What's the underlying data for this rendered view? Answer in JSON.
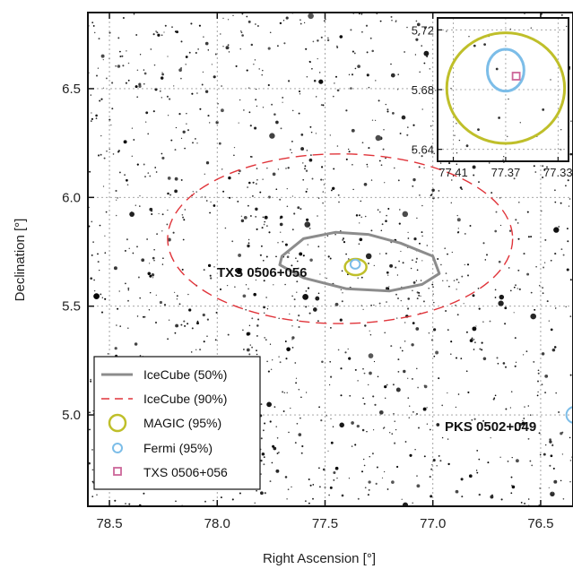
{
  "chart_data": {
    "type": "scatter",
    "xlabel": "Right Ascension [°]",
    "ylabel": "Declination [°]",
    "xlim": [
      78.6,
      76.35
    ],
    "ylim": [
      4.58,
      6.85
    ],
    "x_ticks": [
      "78.5",
      "78.0",
      "77.5",
      "77.0",
      "76.5"
    ],
    "x_tick_values": [
      78.5,
      78.0,
      77.5,
      77.0,
      76.5
    ],
    "y_ticks": [
      "5.0",
      "5.5",
      "6.0",
      "6.5"
    ],
    "y_tick_values": [
      5.0,
      5.5,
      6.0,
      6.5
    ],
    "contours": {
      "icecube_50": [
        [
          77.7,
          5.73
        ],
        [
          77.6,
          5.81
        ],
        [
          77.45,
          5.84
        ],
        [
          77.3,
          5.83
        ],
        [
          77.15,
          5.79
        ],
        [
          77.0,
          5.73
        ],
        [
          76.97,
          5.65
        ],
        [
          77.05,
          5.6
        ],
        [
          77.2,
          5.57
        ],
        [
          77.4,
          5.58
        ],
        [
          77.6,
          5.63
        ],
        [
          77.71,
          5.69
        ]
      ],
      "icecube_90": {
        "center": [
          77.43,
          5.81
        ],
        "radius_x": 0.8,
        "radius_y": 0.39
      },
      "magic_95": {
        "center": [
          77.358,
          5.68
        ],
        "radius_x": 0.05,
        "radius_y": 0.037
      },
      "fermi_95": {
        "center": [
          77.36,
          5.693
        ],
        "radius_x": 0.022,
        "radius_y": 0.021
      }
    },
    "sources": [
      {
        "name": "TXS 0506+056",
        "ra": 77.3582,
        "dec": 5.6931
      },
      {
        "name": "PKS 0502+049",
        "ra": 76.36,
        "dec": 5.0
      }
    ],
    "legend": {
      "position": "lower-left",
      "entries": [
        {
          "label": "IceCube (50%)",
          "color": "#8c8c8c",
          "style": "solid-line"
        },
        {
          "label": "IceCube (90%)",
          "color": "#e0343a",
          "style": "dashed-line"
        },
        {
          "label": "MAGIC (95%)",
          "color": "#bfbf2a",
          "style": "circle"
        },
        {
          "label": "Fermi (95%)",
          "color": "#7cbde8",
          "style": "circle"
        },
        {
          "label": "TXS 0506+056",
          "color": "#cc6699",
          "style": "square"
        }
      ]
    },
    "inset": {
      "xlim": [
        77.422,
        77.322
      ],
      "ylim": [
        5.632,
        5.728
      ],
      "x_ticks": [
        "77.41",
        "77.37",
        "77.33"
      ],
      "x_tick_values": [
        77.41,
        77.37,
        77.33
      ],
      "y_ticks": [
        "5.64",
        "5.68",
        "5.72"
      ],
      "y_tick_values": [
        5.64,
        5.68,
        5.72
      ],
      "magic_95": {
        "center": [
          77.37,
          5.681
        ],
        "radius_x": 0.045,
        "radius_y": 0.037
      },
      "fermi_95": {
        "center": [
          77.37,
          5.693
        ],
        "radius_x": 0.014,
        "radius_y": 0.014
      },
      "source": {
        "ra": 77.362,
        "dec": 5.689
      }
    },
    "grid": true,
    "colors": {
      "icecube_50": "#8c8c8c",
      "icecube_90": "#e0343a",
      "magic": "#bfbf2a",
      "fermi": "#7cbde8",
      "txs": "#cc6699",
      "grid": "#9a9a9a"
    }
  }
}
